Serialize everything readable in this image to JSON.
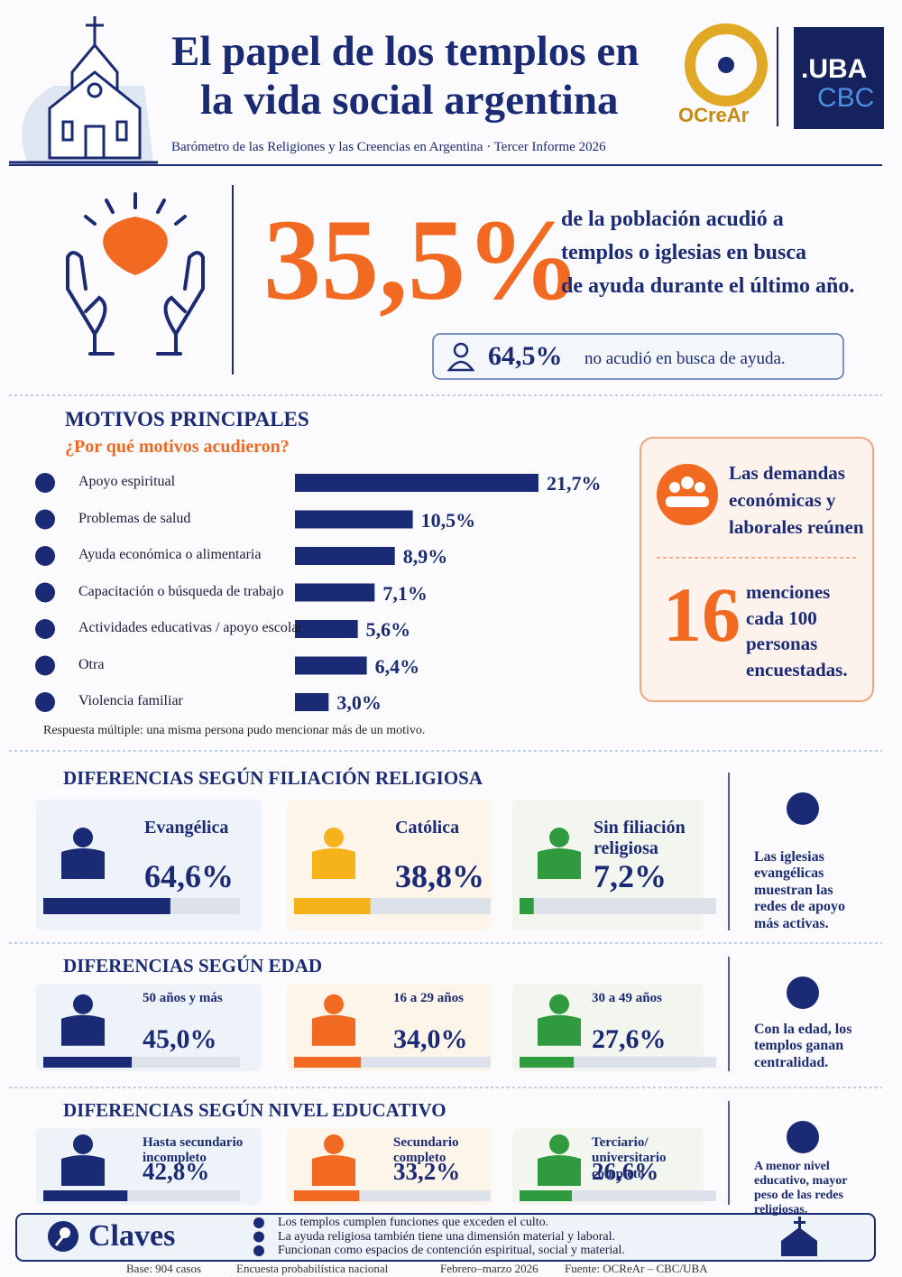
{
  "header": {
    "title_line1": "El papel de los templos en",
    "title_line2": "la vida social argentina",
    "subtitle": "Barómetro de las Religiones y las Creencias en Argentina · Tercer Informe 2026",
    "logo1": "OCreAr",
    "logo2_line1": ".UBA",
    "logo2_line2": "CBC"
  },
  "hero": {
    "big": "35,5%",
    "text": [
      "de la población acudió a",
      "templos o iglesias en busca",
      "de ayuda durante el último año."
    ],
    "secondary_value": "64,5%",
    "secondary_text": "no acudió en busca de ayuda."
  },
  "motives": {
    "title": "MOTIVOS PRINCIPALES",
    "subtitle": "¿Por qué motivos acudieron?",
    "color": "#1a2a75",
    "xlim": [
      0,
      25
    ],
    "items": [
      {
        "label": "Apoyo espiritual",
        "value": 21.7,
        "value_label": "21,7%"
      },
      {
        "label": "Problemas de salud",
        "value": 10.5,
        "value_label": "10,5%"
      },
      {
        "label": "Ayuda económica o alimentaria",
        "value": 8.9,
        "value_label": "8,9%"
      },
      {
        "label": "Capacitación o búsqueda de trabajo",
        "value": 7.1,
        "value_label": "7,1%"
      },
      {
        "label": "Actividades educativas / apoyo escolar",
        "value": 5.6,
        "value_label": "5,6%"
      },
      {
        "label": "Otra",
        "value": 6.4,
        "value_label": "6,4%"
      },
      {
        "label": "Violencia familiar",
        "value": 3.0,
        "value_label": "3,0%"
      }
    ],
    "note": "Respuesta múltiple: una misma persona pudo mencionar más de un motivo."
  },
  "callout": {
    "lines": [
      "Las demandas",
      "económicas y",
      "laborales reúnen"
    ],
    "number": "16",
    "rest": [
      "menciones",
      "cada 100",
      "personas",
      "encuestadas."
    ]
  },
  "sections": [
    {
      "title": "DIFERENCIAS SEGÚN FILIACIÓN RELIGIOSA",
      "xlim": [
        0,
        100
      ],
      "items": [
        {
          "label": "Evangélica",
          "value": 64.6,
          "value_label": "64,6%",
          "color": "#1a2a75"
        },
        {
          "label": "Católica",
          "value": 38.8,
          "value_label": "38,8%",
          "color": "#f5b21b"
        },
        {
          "label": "Sin filiación religiosa",
          "value": 7.2,
          "value_label": "7,2%",
          "color": "#2f9a3e"
        }
      ],
      "note": "Las iglesias evangélicas muestran las redes de apoyo más activas."
    },
    {
      "title": "DIFERENCIAS SEGÚN EDAD",
      "xlim": [
        0,
        100
      ],
      "items": [
        {
          "label": "50 años y más",
          "value": 45.0,
          "value_label": "45,0%",
          "color": "#1a2a75"
        },
        {
          "label": "16 a 29 años",
          "value": 34.0,
          "value_label": "34,0%",
          "color": "#f26a21"
        },
        {
          "label": "30 a 49 años",
          "value": 27.6,
          "value_label": "27,6%",
          "color": "#2f9a3e"
        }
      ],
      "note": "Con la edad, los templos ganan centralidad."
    },
    {
      "title": "DIFERENCIAS SEGÚN NIVEL EDUCATIVO",
      "xlim": [
        0,
        100
      ],
      "items": [
        {
          "label": "Hasta secundario incompleto",
          "value": 42.8,
          "value_label": "42,8%",
          "color": "#1a2a75"
        },
        {
          "label": "Secundario completo",
          "value": 33.2,
          "value_label": "33,2%",
          "color": "#f26a21"
        },
        {
          "label": "Terciario/ universitario completo",
          "value": 26.6,
          "value_label": "26,6%",
          "color": "#2f9a3e"
        }
      ],
      "note": "A menor nivel educativo, mayor peso de las redes religiosas."
    }
  ],
  "keys": {
    "title": "Claves",
    "items": [
      "Los templos cumplen funciones que exceden el culto.",
      "La ayuda religiosa también tiene una dimensión material y laboral.",
      "Funcionan como espacios de contención espiritual, social y material."
    ]
  },
  "footer": [
    "Base: 904 casos",
    "Encuesta probabilística nacional",
    "Febrero–marzo 2026",
    "Fuente: OCReAr – CBC/UBA"
  ]
}
